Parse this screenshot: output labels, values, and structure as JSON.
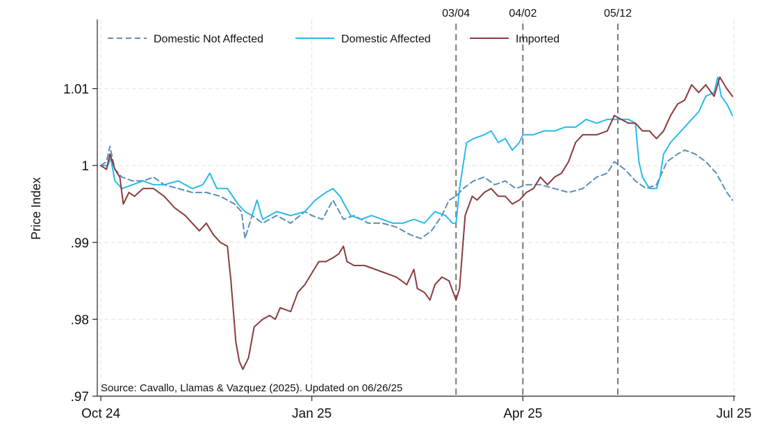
{
  "chart_data": {
    "type": "line",
    "title": "",
    "xlabel": "",
    "ylabel": "Price Index",
    "grid": true,
    "legend_position": "top",
    "ylim": [
      0.97,
      1.019
    ],
    "xlim": [
      -0.05,
      9.02
    ],
    "x_ticks": [
      {
        "x": 0,
        "label": "Oct 24"
      },
      {
        "x": 3,
        "label": "Jan 25"
      },
      {
        "x": 6,
        "label": "Apr 25"
      },
      {
        "x": 9,
        "label": "Jul 25"
      }
    ],
    "y_ticks": [
      {
        "y": 0.97,
        "label": ".97"
      },
      {
        "y": 0.98,
        "label": ".98"
      },
      {
        "y": 0.99,
        "label": ".99"
      },
      {
        "y": 1.0,
        "label": "1"
      },
      {
        "y": 1.01,
        "label": "1.01"
      }
    ],
    "annotations": [
      {
        "x": 5.05,
        "label": "03/04"
      },
      {
        "x": 6.0,
        "label": "04/02"
      },
      {
        "x": 7.35,
        "label": "05/12"
      }
    ],
    "source_note": "Source: Cavallo, Llamas & Vazquez (2025). Updated on 06/26/25",
    "series": [
      {
        "name": "Domestic Not Affected",
        "color": "#5b8db8",
        "style": "dashed",
        "points": [
          [
            0,
            1.0
          ],
          [
            0.08,
            1.0005
          ],
          [
            0.13,
            1.0025
          ],
          [
            0.2,
            0.9995
          ],
          [
            0.3,
            0.9985
          ],
          [
            0.45,
            0.998
          ],
          [
            0.6,
            0.998
          ],
          [
            0.75,
            0.9985
          ],
          [
            0.9,
            0.9975
          ],
          [
            1.1,
            0.997
          ],
          [
            1.3,
            0.9965
          ],
          [
            1.5,
            0.9965
          ],
          [
            1.7,
            0.996
          ],
          [
            1.9,
            0.995
          ],
          [
            2.0,
            0.994
          ],
          [
            2.05,
            0.9905
          ],
          [
            2.15,
            0.9935
          ],
          [
            2.3,
            0.9925
          ],
          [
            2.5,
            0.9935
          ],
          [
            2.7,
            0.9925
          ],
          [
            2.9,
            0.994
          ],
          [
            3.0,
            0.9935
          ],
          [
            3.15,
            0.993
          ],
          [
            3.3,
            0.9955
          ],
          [
            3.45,
            0.993
          ],
          [
            3.6,
            0.9935
          ],
          [
            3.8,
            0.9925
          ],
          [
            4.0,
            0.9925
          ],
          [
            4.2,
            0.992
          ],
          [
            4.4,
            0.991
          ],
          [
            4.55,
            0.9905
          ],
          [
            4.7,
            0.9915
          ],
          [
            4.85,
            0.9935
          ],
          [
            4.95,
            0.9955
          ],
          [
            5.05,
            0.996
          ],
          [
            5.15,
            0.997
          ],
          [
            5.3,
            0.998
          ],
          [
            5.45,
            0.9985
          ],
          [
            5.6,
            0.9975
          ],
          [
            5.75,
            0.998
          ],
          [
            5.9,
            0.997
          ],
          [
            6.05,
            0.9975
          ],
          [
            6.25,
            0.9975
          ],
          [
            6.45,
            0.997
          ],
          [
            6.65,
            0.9965
          ],
          [
            6.85,
            0.997
          ],
          [
            7.05,
            0.9985
          ],
          [
            7.2,
            0.999
          ],
          [
            7.3,
            1.0005
          ],
          [
            7.45,
            0.9995
          ],
          [
            7.6,
            0.998
          ],
          [
            7.75,
            0.997
          ],
          [
            7.9,
            0.9975
          ],
          [
            8.05,
            1.0005
          ],
          [
            8.2,
            1.0015
          ],
          [
            8.3,
            1.002
          ],
          [
            8.45,
            1.0015
          ],
          [
            8.6,
            1.0005
          ],
          [
            8.75,
            0.999
          ],
          [
            8.9,
            0.9965
          ],
          [
            8.98,
            0.9955
          ]
        ]
      },
      {
        "name": "Domestic Affected",
        "color": "#29b9ec",
        "style": "solid",
        "points": [
          [
            0,
            1.0
          ],
          [
            0.1,
            1.0
          ],
          [
            0.14,
            1.001
          ],
          [
            0.2,
            0.998
          ],
          [
            0.3,
            0.997
          ],
          [
            0.45,
            0.9975
          ],
          [
            0.6,
            0.998
          ],
          [
            0.75,
            0.9975
          ],
          [
            0.9,
            0.9975
          ],
          [
            1.1,
            0.998
          ],
          [
            1.3,
            0.997
          ],
          [
            1.45,
            0.9975
          ],
          [
            1.55,
            0.999
          ],
          [
            1.65,
            0.997
          ],
          [
            1.8,
            0.997
          ],
          [
            1.95,
            0.995
          ],
          [
            2.05,
            0.994
          ],
          [
            2.15,
            0.9935
          ],
          [
            2.22,
            0.9955
          ],
          [
            2.3,
            0.993
          ],
          [
            2.5,
            0.994
          ],
          [
            2.7,
            0.9935
          ],
          [
            2.9,
            0.994
          ],
          [
            3.05,
            0.9955
          ],
          [
            3.2,
            0.9965
          ],
          [
            3.3,
            0.997
          ],
          [
            3.4,
            0.996
          ],
          [
            3.55,
            0.9935
          ],
          [
            3.7,
            0.993
          ],
          [
            3.85,
            0.9935
          ],
          [
            4.0,
            0.993
          ],
          [
            4.15,
            0.9925
          ],
          [
            4.3,
            0.9925
          ],
          [
            4.45,
            0.993
          ],
          [
            4.6,
            0.9925
          ],
          [
            4.75,
            0.994
          ],
          [
            4.9,
            0.9935
          ],
          [
            5.0,
            0.9925
          ],
          [
            5.05,
            0.9925
          ],
          [
            5.1,
            0.997
          ],
          [
            5.2,
            1.003
          ],
          [
            5.3,
            1.0035
          ],
          [
            5.45,
            1.004
          ],
          [
            5.55,
            1.0045
          ],
          [
            5.65,
            1.003
          ],
          [
            5.75,
            1.0035
          ],
          [
            5.85,
            1.002
          ],
          [
            5.95,
            1.003
          ],
          [
            6.0,
            1.004
          ],
          [
            6.15,
            1.004
          ],
          [
            6.3,
            1.0045
          ],
          [
            6.45,
            1.0045
          ],
          [
            6.6,
            1.005
          ],
          [
            6.75,
            1.005
          ],
          [
            6.9,
            1.006
          ],
          [
            7.05,
            1.0055
          ],
          [
            7.2,
            1.006
          ],
          [
            7.35,
            1.006
          ],
          [
            7.5,
            1.006
          ],
          [
            7.6,
            1.0055
          ],
          [
            7.65,
            1.0005
          ],
          [
            7.7,
            0.9985
          ],
          [
            7.8,
            0.997
          ],
          [
            7.9,
            0.997
          ],
          [
            7.95,
            0.9985
          ],
          [
            8.0,
            1.0015
          ],
          [
            8.1,
            1.003
          ],
          [
            8.2,
            1.004
          ],
          [
            8.35,
            1.0055
          ],
          [
            8.5,
            1.007
          ],
          [
            8.6,
            1.009
          ],
          [
            8.72,
            1.0095
          ],
          [
            8.77,
            1.0115
          ],
          [
            8.82,
            1.009
          ],
          [
            8.9,
            1.008
          ],
          [
            8.98,
            1.0065
          ]
        ]
      },
      {
        "name": "Imported",
        "color": "#8b3a3a",
        "style": "solid",
        "points": [
          [
            0,
            1.0
          ],
          [
            0.08,
            0.9995
          ],
          [
            0.13,
            1.0015
          ],
          [
            0.2,
            0.9995
          ],
          [
            0.27,
            0.9985
          ],
          [
            0.32,
            0.995
          ],
          [
            0.4,
            0.9965
          ],
          [
            0.48,
            0.996
          ],
          [
            0.6,
            0.997
          ],
          [
            0.75,
            0.997
          ],
          [
            0.9,
            0.996
          ],
          [
            1.05,
            0.9945
          ],
          [
            1.2,
            0.9935
          ],
          [
            1.3,
            0.9925
          ],
          [
            1.4,
            0.9915
          ],
          [
            1.5,
            0.9925
          ],
          [
            1.6,
            0.991
          ],
          [
            1.7,
            0.99
          ],
          [
            1.8,
            0.9895
          ],
          [
            1.85,
            0.985
          ],
          [
            1.92,
            0.977
          ],
          [
            1.97,
            0.9745
          ],
          [
            2.02,
            0.9735
          ],
          [
            2.1,
            0.975
          ],
          [
            2.18,
            0.979
          ],
          [
            2.3,
            0.98
          ],
          [
            2.4,
            0.9805
          ],
          [
            2.48,
            0.98
          ],
          [
            2.55,
            0.9815
          ],
          [
            2.7,
            0.981
          ],
          [
            2.8,
            0.9835
          ],
          [
            2.9,
            0.9845
          ],
          [
            3.0,
            0.986
          ],
          [
            3.1,
            0.9875
          ],
          [
            3.2,
            0.9875
          ],
          [
            3.3,
            0.988
          ],
          [
            3.38,
            0.9885
          ],
          [
            3.45,
            0.9895
          ],
          [
            3.5,
            0.9875
          ],
          [
            3.6,
            0.987
          ],
          [
            3.75,
            0.987
          ],
          [
            3.9,
            0.9865
          ],
          [
            4.05,
            0.986
          ],
          [
            4.2,
            0.9855
          ],
          [
            4.35,
            0.9845
          ],
          [
            4.45,
            0.9865
          ],
          [
            4.5,
            0.984
          ],
          [
            4.6,
            0.9835
          ],
          [
            4.68,
            0.9825
          ],
          [
            4.75,
            0.9845
          ],
          [
            4.85,
            0.9855
          ],
          [
            4.95,
            0.985
          ],
          [
            5.05,
            0.9825
          ],
          [
            5.1,
            0.984
          ],
          [
            5.18,
            0.9935
          ],
          [
            5.28,
            0.996
          ],
          [
            5.35,
            0.9955
          ],
          [
            5.45,
            0.9965
          ],
          [
            5.55,
            0.997
          ],
          [
            5.65,
            0.996
          ],
          [
            5.75,
            0.996
          ],
          [
            5.85,
            0.995
          ],
          [
            5.95,
            0.9955
          ],
          [
            6.05,
            0.9965
          ],
          [
            6.15,
            0.997
          ],
          [
            6.25,
            0.9985
          ],
          [
            6.35,
            0.9975
          ],
          [
            6.45,
            0.9985
          ],
          [
            6.55,
            0.999
          ],
          [
            6.65,
            1.0005
          ],
          [
            6.75,
            1.003
          ],
          [
            6.85,
            1.004
          ],
          [
            6.95,
            1.004
          ],
          [
            7.05,
            1.004
          ],
          [
            7.2,
            1.0045
          ],
          [
            7.3,
            1.0065
          ],
          [
            7.4,
            1.006
          ],
          [
            7.5,
            1.0055
          ],
          [
            7.6,
            1.0055
          ],
          [
            7.7,
            1.0045
          ],
          [
            7.8,
            1.0045
          ],
          [
            7.9,
            1.0035
          ],
          [
            8.0,
            1.0045
          ],
          [
            8.1,
            1.0065
          ],
          [
            8.2,
            1.008
          ],
          [
            8.3,
            1.0085
          ],
          [
            8.4,
            1.0105
          ],
          [
            8.5,
            1.0095
          ],
          [
            8.6,
            1.0105
          ],
          [
            8.72,
            1.009
          ],
          [
            8.8,
            1.0115
          ],
          [
            8.9,
            1.01
          ],
          [
            8.98,
            1.009
          ]
        ]
      }
    ]
  }
}
